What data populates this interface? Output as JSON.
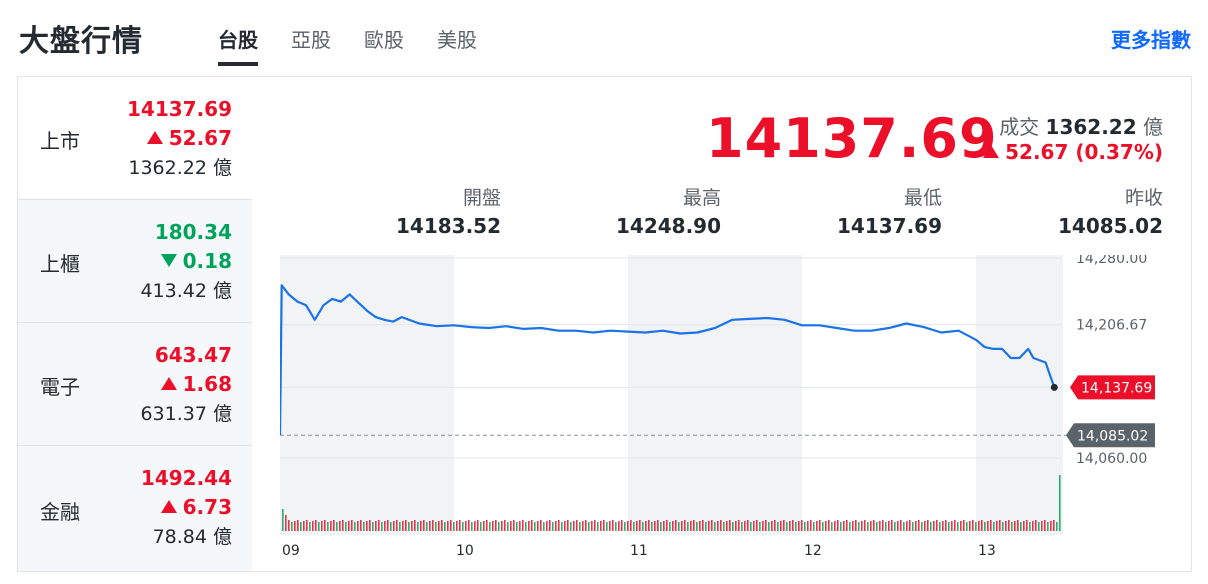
{
  "header": {
    "title": "大盤行情",
    "tabs": [
      {
        "label": "台股",
        "active": true
      },
      {
        "label": "亞股",
        "active": false
      },
      {
        "label": "歐股",
        "active": false
      },
      {
        "label": "美股",
        "active": false
      }
    ],
    "more_link": "更多指數"
  },
  "sidebar": {
    "items": [
      {
        "name": "上市",
        "price": "14137.69",
        "change": "52.67",
        "direction": "up",
        "volume": "1362.22 億"
      },
      {
        "name": "上櫃",
        "price": "180.34",
        "change": "0.18",
        "direction": "down",
        "volume": "413.42 億"
      },
      {
        "name": "電子",
        "price": "643.47",
        "change": "1.68",
        "direction": "up",
        "volume": "631.37 億"
      },
      {
        "name": "金融",
        "price": "1492.44",
        "change": "6.73",
        "direction": "up",
        "volume": "78.84 億"
      }
    ]
  },
  "quote": {
    "price": "14137.69",
    "volume_label": "成交",
    "volume_value": "1362.22",
    "volume_unit": "億",
    "change": "52.67 (0.37%)",
    "open_label": "開盤",
    "open_value": "14183.52",
    "high_label": "最高",
    "high_value": "14248.90",
    "low_label": "最低",
    "low_value": "14137.69",
    "prev_label": "昨收",
    "prev_value": "14085.02"
  },
  "colors": {
    "up": "#eb0f29",
    "down": "#00a35a",
    "line": "#1a73e8",
    "link": "#0f69ff"
  },
  "chart_data": {
    "type": "line",
    "x_ticks": [
      "09",
      "10",
      "11",
      "12",
      "13"
    ],
    "y_ticks": [
      "14,280.00",
      "14,206.67",
      "14,060.00"
    ],
    "ylim": [
      14060,
      14280
    ],
    "x_range_hours": [
      9,
      13.5
    ],
    "last_label": "14,137.69",
    "prev_close_label": "14,085.02",
    "last_value": 14137.69,
    "prev_close_value": 14085.02,
    "series": [
      {
        "x": [
          9.0,
          9.01,
          9.05,
          9.1,
          9.15,
          9.2,
          9.25,
          9.3,
          9.35,
          9.4,
          9.5,
          9.55,
          9.6,
          9.65,
          9.7,
          9.8,
          9.9,
          10.0,
          10.1,
          10.2,
          10.3,
          10.4,
          10.5,
          10.6,
          10.7,
          10.8,
          10.9,
          11.0,
          11.1,
          11.2,
          11.3,
          11.4,
          11.5,
          11.6,
          11.7,
          11.8,
          11.9,
          12.0,
          12.1,
          12.2,
          12.3,
          12.4,
          12.5,
          12.6,
          12.7,
          12.8,
          12.9,
          13.0,
          13.05,
          13.1,
          13.15,
          13.2,
          13.25,
          13.3,
          13.33,
          13.4,
          13.45
        ],
        "y": [
          14085,
          14250,
          14240,
          14232,
          14228,
          14212,
          14228,
          14235,
          14232,
          14240,
          14222,
          14215,
          14212,
          14210,
          14215,
          14208,
          14205,
          14206,
          14204,
          14203,
          14205,
          14202,
          14203,
          14200,
          14200,
          14198,
          14200,
          14199,
          14198,
          14200,
          14197,
          14198,
          14203,
          14212,
          14213,
          14214,
          14212,
          14206,
          14206,
          14203,
          14200,
          14200,
          14203,
          14208,
          14204,
          14198,
          14200,
          14190,
          14182,
          14180,
          14180,
          14170,
          14170,
          14180,
          14170,
          14165,
          14137.69
        ]
      }
    ],
    "volume_bars": {
      "start_height": 22,
      "base_height": 9,
      "last_height": 56
    }
  }
}
